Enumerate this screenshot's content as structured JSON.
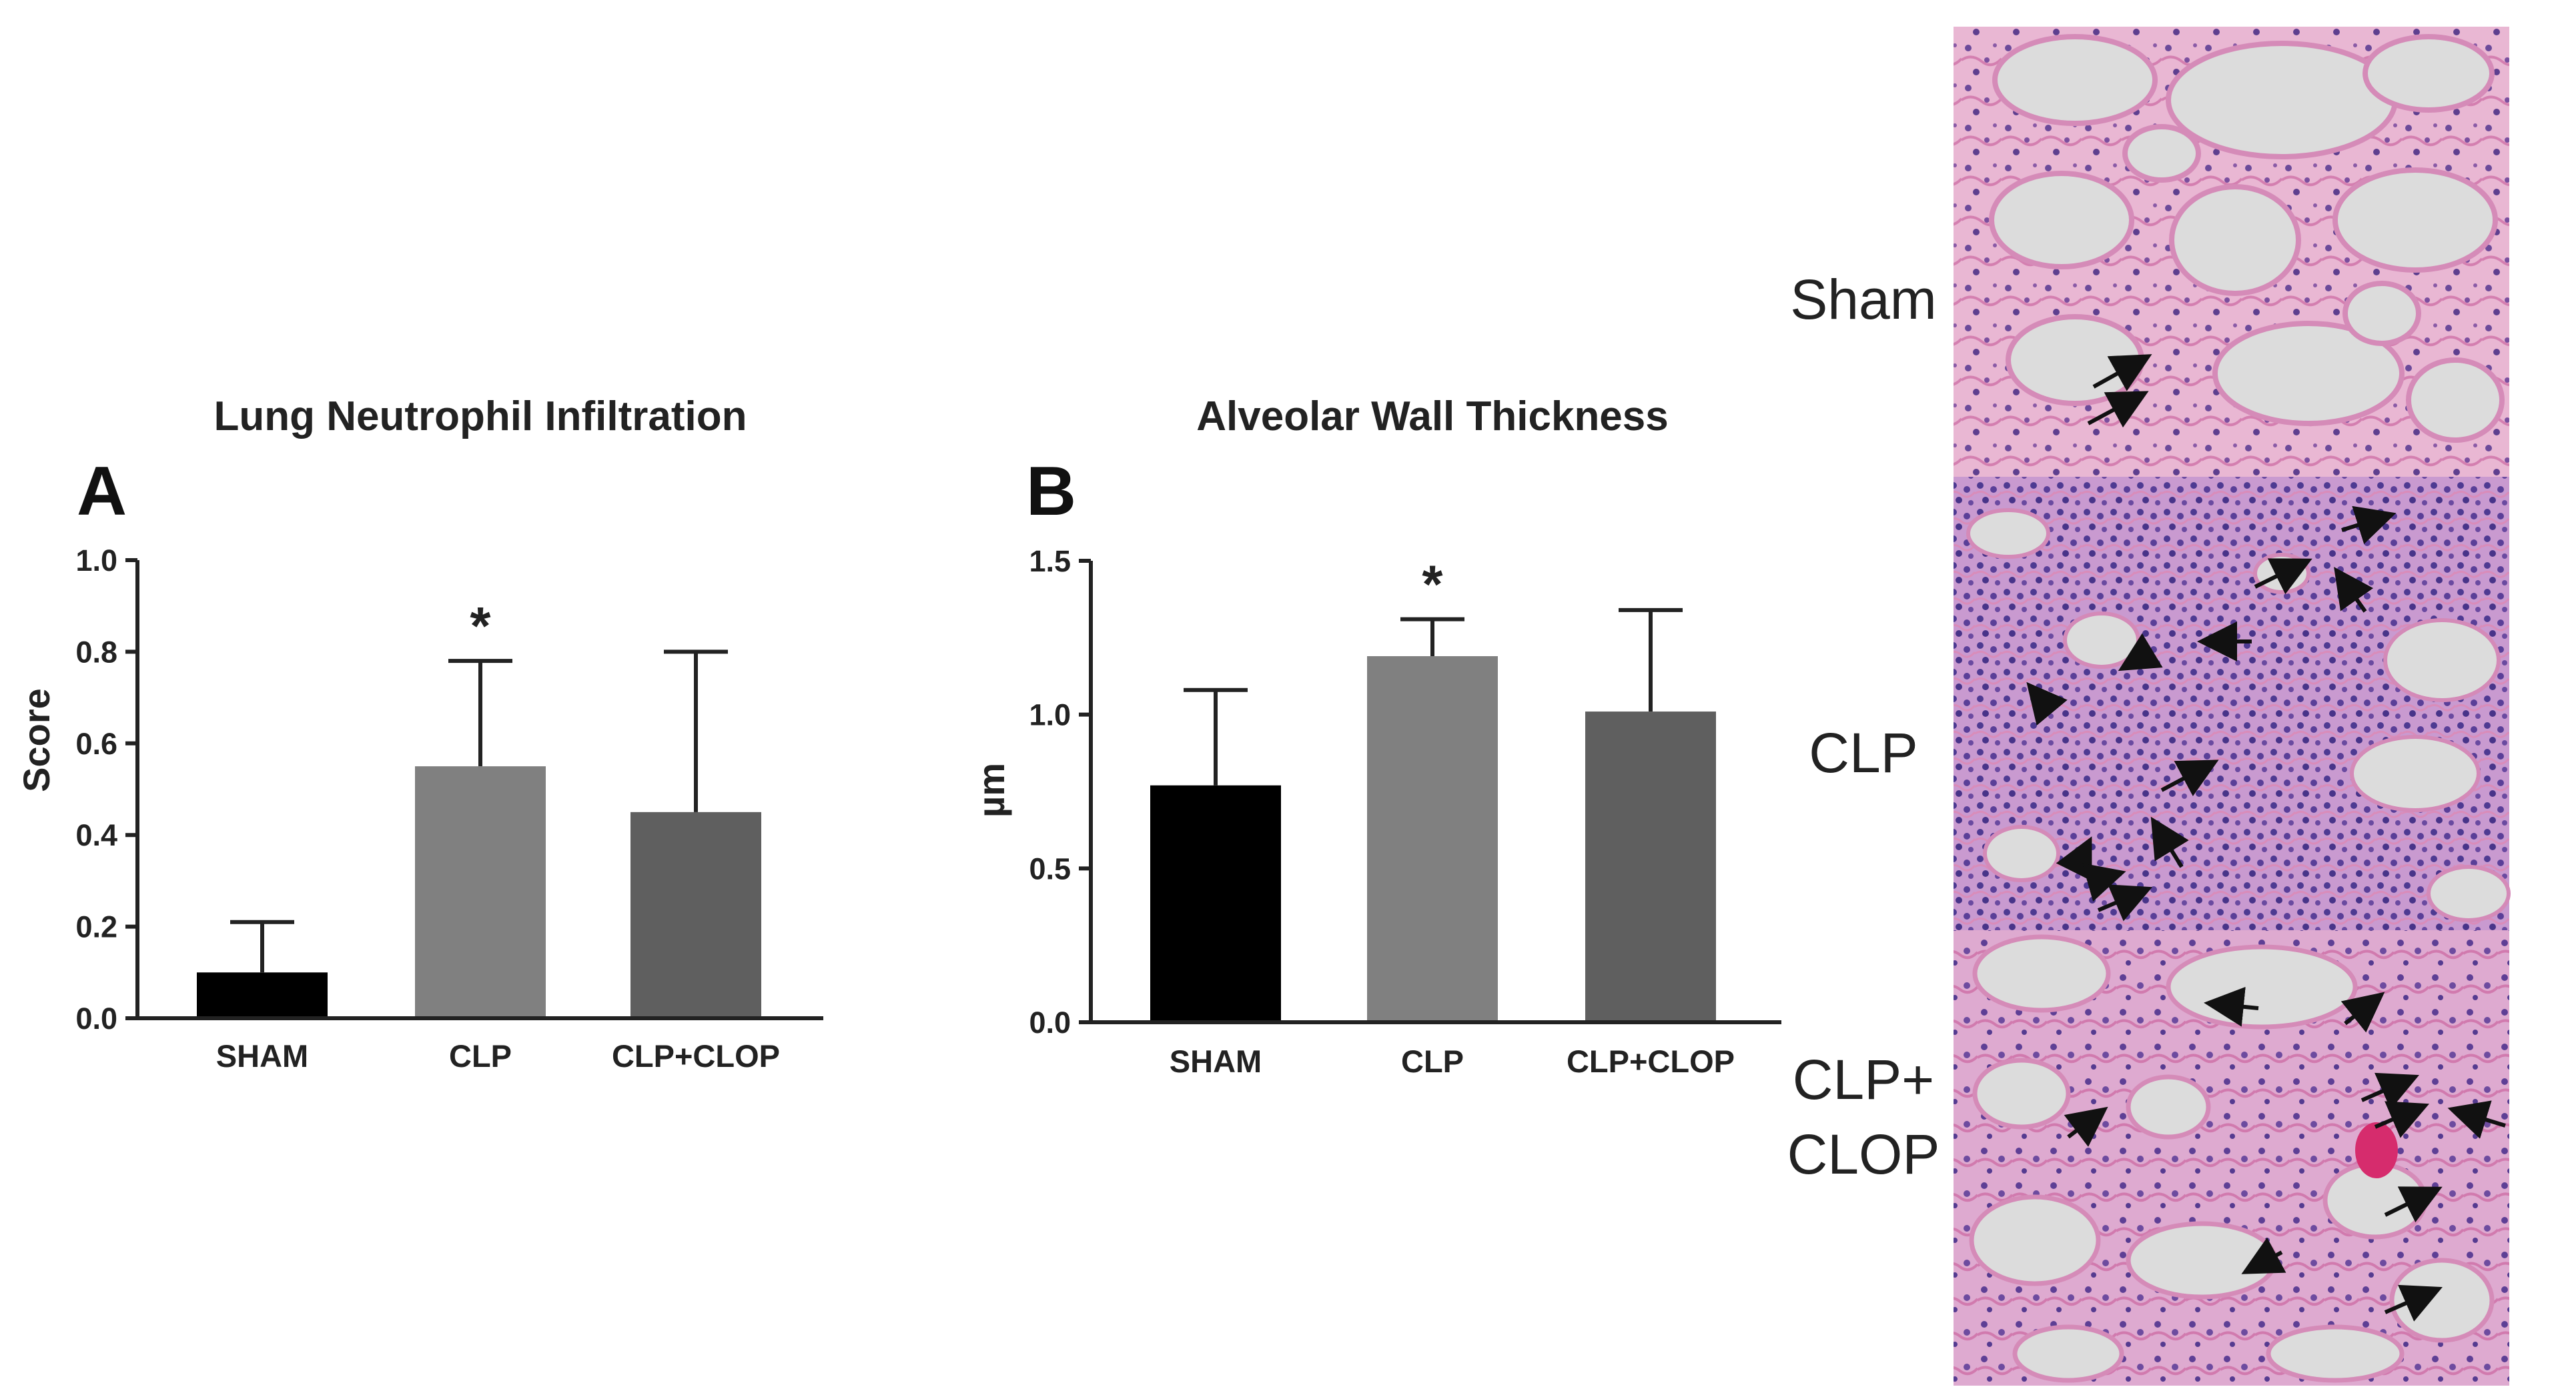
{
  "chart_data": [
    {
      "type": "bar",
      "panel": "A",
      "title": "Lung Neutrophil Infiltration",
      "xlabel": "",
      "ylabel": "Score",
      "ylim": [
        0,
        1.0
      ],
      "yticks": [
        "0.0",
        "0.2",
        "0.4",
        "0.6",
        "0.8",
        "1.0"
      ],
      "categories": [
        "SHAM",
        "CLP",
        "CLP+CLOP"
      ],
      "values": [
        0.1,
        0.55,
        0.45
      ],
      "error_upper": [
        0.21,
        0.78,
        0.8
      ],
      "significance": [
        "",
        "*",
        ""
      ],
      "colors": [
        "#000000",
        "#808080",
        "#5f5f5f"
      ]
    },
    {
      "type": "bar",
      "panel": "B",
      "title": "Alveolar Wall Thickness",
      "xlabel": "",
      "ylabel": "µm",
      "ylim": [
        0,
        1.5
      ],
      "yticks": [
        "0.0",
        "0.5",
        "1.0",
        "1.5"
      ],
      "categories": [
        "SHAM",
        "CLP",
        "CLP+CLOP"
      ],
      "values": [
        0.77,
        1.19,
        1.01
      ],
      "error_upper": [
        1.08,
        1.31,
        1.34
      ],
      "significance": [
        "",
        "*",
        ""
      ],
      "colors": [
        "#000000",
        "#808080",
        "#5f5f5f"
      ]
    }
  ],
  "histology": {
    "rows": [
      {
        "label": "Sham"
      },
      {
        "label": "CLP"
      },
      {
        "label_line1": "CLP+",
        "label_line2": "CLOP"
      }
    ]
  }
}
